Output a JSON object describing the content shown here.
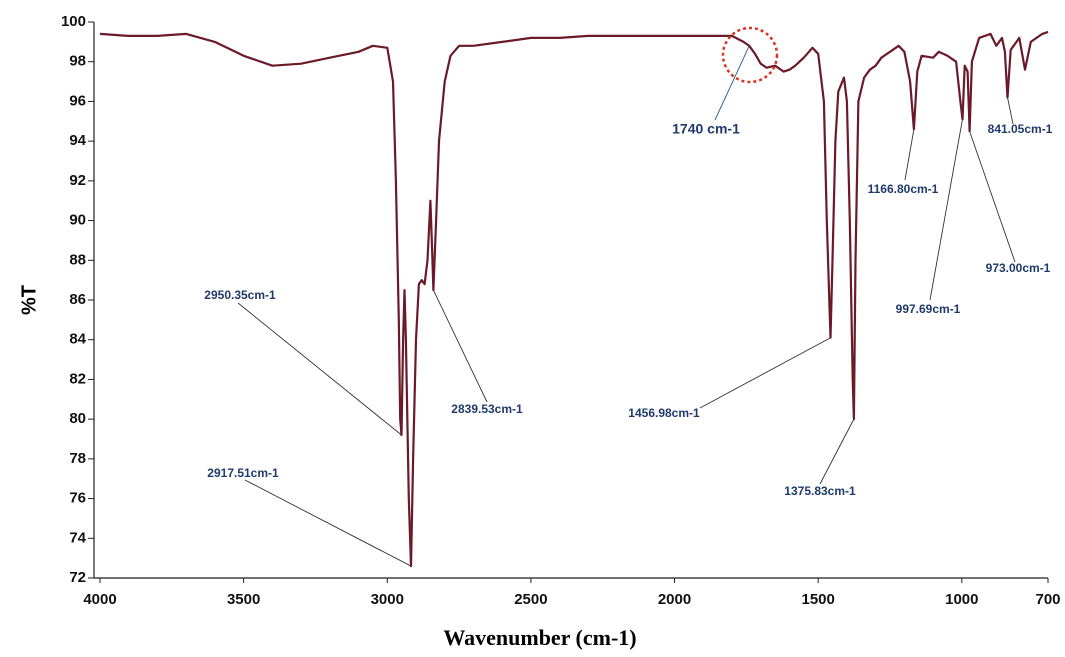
{
  "chart_data": {
    "type": "line",
    "x_label": "Wavenumber (cm-1)",
    "y_label": "%T",
    "xlim": [
      4000,
      700
    ],
    "ylim": [
      72,
      100
    ],
    "xticks": [
      4000,
      3500,
      3000,
      2500,
      2000,
      1500,
      1000,
      700
    ],
    "yticks": [
      72,
      74,
      76,
      78,
      80,
      82,
      84,
      86,
      88,
      90,
      92,
      94,
      96,
      98,
      100
    ],
    "series": [
      {
        "name": "%T",
        "color": "#6b1a2a",
        "x": [
          4000,
          3900,
          3800,
          3700,
          3600,
          3500,
          3400,
          3300,
          3200,
          3100,
          3050,
          3000,
          2980,
          2970,
          2960,
          2955,
          2950.35,
          2945,
          2940,
          2935,
          2925,
          2917.51,
          2910,
          2900,
          2890,
          2880,
          2870,
          2860,
          2850,
          2845,
          2839.53,
          2830,
          2820,
          2800,
          2780,
          2750,
          2700,
          2600,
          2500,
          2400,
          2300,
          2200,
          2100,
          2000,
          1900,
          1800,
          1760,
          1740,
          1720,
          1700,
          1680,
          1650,
          1620,
          1600,
          1580,
          1550,
          1520,
          1500,
          1480,
          1470,
          1456.98,
          1450,
          1440,
          1430,
          1410,
          1400,
          1390,
          1380,
          1375.83,
          1370,
          1360,
          1340,
          1320,
          1300,
          1280,
          1250,
          1220,
          1200,
          1180,
          1166.8,
          1155,
          1140,
          1100,
          1080,
          1050,
          1020,
          1005,
          997.69,
          990,
          980,
          973,
          965,
          940,
          900,
          880,
          860,
          850,
          841.05,
          830,
          800,
          780,
          760,
          740,
          720,
          700
        ],
        "values": [
          99.4,
          99.3,
          99.3,
          99.4,
          99.0,
          98.3,
          97.8,
          97.9,
          98.2,
          98.5,
          98.8,
          98.7,
          97,
          92,
          85,
          80,
          79.2,
          84,
          86.5,
          84,
          76,
          72.6,
          78,
          84,
          86.8,
          87,
          86.8,
          88,
          91,
          89,
          86.5,
          90,
          94,
          97,
          98.3,
          98.8,
          98.8,
          99.0,
          99.2,
          99.2,
          99.3,
          99.3,
          99.3,
          99.3,
          99.3,
          99.3,
          99.0,
          98.8,
          98.4,
          97.9,
          97.7,
          97.8,
          97.5,
          97.6,
          97.8,
          98.2,
          98.7,
          98.4,
          96,
          90,
          84.1,
          88,
          94,
          96.5,
          97.2,
          96,
          90,
          82,
          80,
          88,
          96,
          97.2,
          97.6,
          97.8,
          98.2,
          98.5,
          98.8,
          98.5,
          97,
          94.6,
          97.5,
          98.3,
          98.2,
          98.5,
          98.3,
          98,
          96,
          95.1,
          97.8,
          97.5,
          94.5,
          98,
          99.2,
          99.4,
          98.8,
          99.2,
          98.5,
          96.2,
          98.6,
          99.2,
          97.6,
          99,
          99.2,
          99.4,
          99.5
        ]
      }
    ],
    "annotations": [
      {
        "text": "2950.35cm-1",
        "x": 2950.35,
        "y": 79.2
      },
      {
        "text": "2917.51cm-1",
        "x": 2917.51,
        "y": 72.6
      },
      {
        "text": "2839.53cm-1",
        "x": 2839.53,
        "y": 86.5
      },
      {
        "text": "1456.98cm-1",
        "x": 1456.98,
        "y": 84.1
      },
      {
        "text": "1375.83cm-1",
        "x": 1375.83,
        "y": 80
      },
      {
        "text": "1166.80cm-1",
        "x": 1166.8,
        "y": 94.6
      },
      {
        "text": "997.69cm-1",
        "x": 997.69,
        "y": 95.1
      },
      {
        "text": "973.00cm-1",
        "x": 973,
        "y": 94.5
      },
      {
        "text": "841.05cm-1",
        "x": 841.05,
        "y": 96.2
      },
      {
        "text": "1740 cm-1",
        "x": 1740,
        "y": 98.8
      }
    ]
  }
}
